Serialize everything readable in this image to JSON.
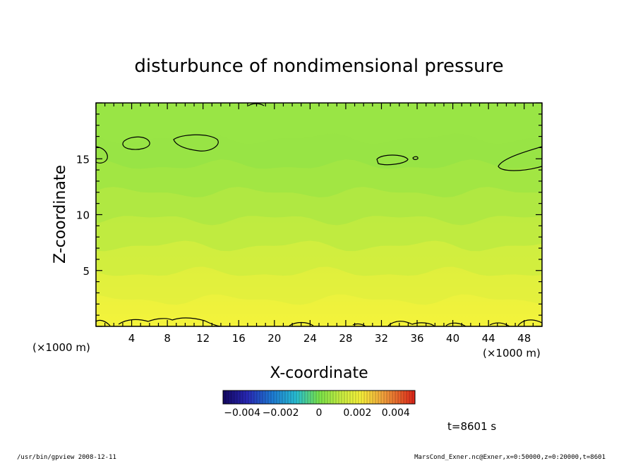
{
  "chart_data": {
    "type": "heatmap",
    "title": "disturbunce of nondimensional pressure",
    "xlabel": "X-coordinate",
    "ylabel": "Z-coordinate",
    "x_unit": "(×1000 m)",
    "y_unit": "(×1000 m)",
    "x_ticks": [
      "4",
      "8",
      "12",
      "16",
      "20",
      "24",
      "28",
      "32",
      "36",
      "40",
      "44",
      "48"
    ],
    "x_tick_values": [
      4,
      8,
      12,
      16,
      20,
      24,
      28,
      32,
      36,
      40,
      44,
      48
    ],
    "y_ticks": [
      "5",
      "10",
      "15"
    ],
    "y_tick_values": [
      5,
      10,
      15
    ],
    "xlim": [
      0,
      50
    ],
    "ylim": [
      0,
      20
    ],
    "color_range": [
      -0.005,
      0.005
    ],
    "colorbar_labels": [
      "−0.004",
      "−0.002",
      "0",
      "0.002",
      "0.004"
    ],
    "colorbar_values": [
      -0.004,
      -0.002,
      0,
      0.002,
      0.004
    ],
    "colors": {
      "low": "#1a0a6e",
      "mid_low": "#2ea8e0",
      "mid": "#7ee24a",
      "mid_high": "#f2f03a",
      "high": "#e03a1a"
    },
    "contours_description_level": 0.0,
    "field_summary": {
      "z_values": [
        0,
        2,
        4,
        6,
        8,
        10,
        12,
        14,
        16,
        18,
        20
      ],
      "typical_values": [
        0.0018,
        0.0015,
        0.0013,
        0.0011,
        0.0009,
        0.0007,
        0.0005,
        0.0003,
        0.0002,
        0.0001,
        0.0001
      ]
    },
    "time_label": "t=8601 s"
  },
  "footer": {
    "left": "/usr/bin/gpview   2008-12-11",
    "right": "MarsCond_Exner.nc@Exner,x=0:50000,z=0:20000,t=8601"
  }
}
